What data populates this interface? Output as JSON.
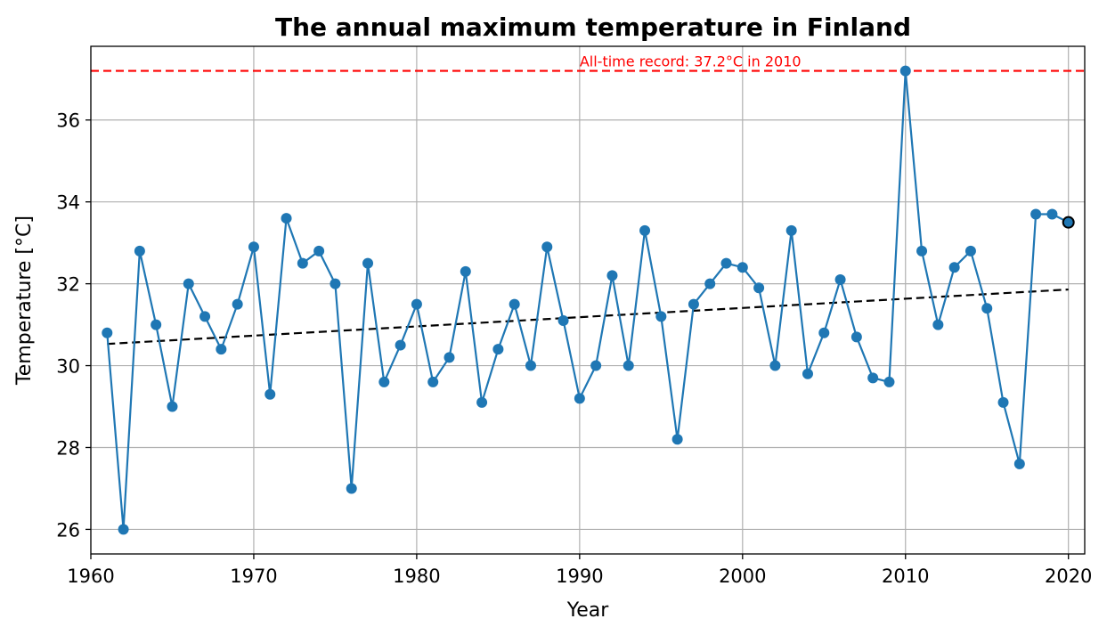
{
  "chart_data": {
    "type": "line",
    "title": "The annual maximum temperature in Finland",
    "xlabel": "Year",
    "ylabel": "Temperature [°C]",
    "xlim": [
      1960,
      2021
    ],
    "ylim": [
      25.4,
      37.8
    ],
    "xticks": [
      1960,
      1970,
      1980,
      1990,
      2000,
      2010,
      2020
    ],
    "yticks": [
      26,
      28,
      30,
      32,
      34,
      36
    ],
    "grid": true,
    "colors": {
      "series": "#1f77b4",
      "record": "#ff0000",
      "trend": "#000000"
    },
    "series": [
      {
        "x": [
          1961,
          1962,
          1963,
          1964,
          1965,
          1966,
          1967,
          1968,
          1969,
          1970,
          1971,
          1972,
          1973,
          1974,
          1975,
          1976,
          1977,
          1978,
          1979,
          1980,
          1981,
          1982,
          1983,
          1984,
          1985,
          1986,
          1987,
          1988,
          1989,
          1990,
          1991,
          1992,
          1993,
          1994,
          1995,
          1996,
          1997,
          1998,
          1999,
          2000,
          2001,
          2002,
          2003,
          2004,
          2005,
          2006,
          2007,
          2008,
          2009,
          2010,
          2011,
          2012,
          2013,
          2014,
          2015,
          2016,
          2017,
          2018,
          2019,
          2020
        ],
        "values": [
          30.8,
          26.0,
          32.8,
          31.0,
          29.0,
          32.0,
          31.2,
          30.4,
          31.5,
          32.9,
          29.3,
          33.6,
          32.5,
          32.8,
          32.0,
          27.0,
          32.5,
          29.6,
          30.5,
          31.5,
          29.6,
          30.2,
          32.3,
          29.1,
          30.4,
          31.5,
          30.0,
          32.9,
          31.1,
          29.2,
          30.0,
          32.2,
          30.0,
          33.3,
          31.2,
          28.2,
          31.5,
          32.0,
          32.5,
          32.4,
          31.9,
          30.0,
          33.3,
          29.8,
          30.8,
          32.1,
          30.7,
          29.7,
          29.6,
          37.2,
          32.8,
          31.0,
          32.4,
          32.8,
          31.4,
          29.1,
          27.6,
          33.7,
          33.7,
          33.5
        ]
      }
    ],
    "trend": {
      "x": [
        1961,
        2020
      ],
      "y": [
        30.53,
        31.86
      ]
    },
    "record_line": {
      "y": 37.2
    },
    "highlight_point": {
      "x": 2020,
      "y": 33.5
    },
    "annotation": {
      "text": "All-time record: 37.2°C in 2010",
      "x": 1990,
      "y": 37.2
    }
  }
}
